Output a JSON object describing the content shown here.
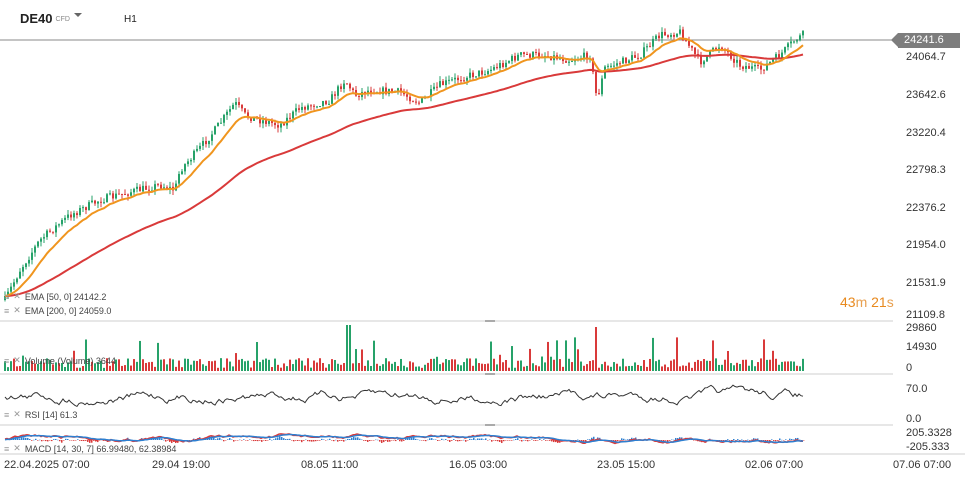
{
  "header": {
    "symbol": "DE40",
    "instrument_type": "CFD",
    "timeframe": "H1"
  },
  "timer": {
    "minutes": "43",
    "minutes_unit": "m",
    "seconds": "21",
    "seconds_unit": "s"
  },
  "price_axis": {
    "current_price": "24241.6",
    "labels": [
      "24064.7",
      "23642.6",
      "23220.4",
      "22798.3",
      "22376.2",
      "21954.0",
      "21531.9",
      "21109.8"
    ]
  },
  "volume_axis": {
    "labels": [
      "29860",
      "14930",
      "0"
    ]
  },
  "rsi_axis": {
    "labels": [
      "70.0",
      "0.0"
    ]
  },
  "macd_axis": {
    "labels": [
      "205.3328",
      "-205.333"
    ]
  },
  "time_axis": {
    "labels": [
      "22.04.2025  07:00",
      "29.04  19:00",
      "08.05  11:00",
      "16.05  03:00",
      "23.05  15:00",
      "02.06  07:00",
      "07.06  07:00"
    ]
  },
  "indicators": {
    "ema50": "EMA  [50, 0]  24142.2",
    "ema200": "EMA  [200, 0]  24059.0",
    "volume": "Volume  (Volume)  3644",
    "rsi": "RSI  [14]  61.3",
    "macd": "MACD  [14, 30, 7]  66.99480,  62.38984"
  },
  "colors": {
    "bull": "#26a269",
    "bear": "#d93a3a",
    "ema50": "#f0951e",
    "ema200": "#d93a3a",
    "macd_line": "#d93a3a",
    "macd_signal": "#2e7fd0"
  },
  "chart_data": [
    {
      "type": "candlestick",
      "series": [
        {
          "name": "EMA [50, 0]",
          "last": 24142.2
        },
        {
          "name": "EMA [200, 0]",
          "last": 24059.0
        }
      ],
      "x": [
        "22.04.2025 07:00",
        "29.04 19:00",
        "08.05 11:00",
        "16.05 03:00",
        "23.05 15:00",
        "02.06 07:00",
        "07.06 07:00"
      ],
      "close": [
        21300,
        22500,
        23700,
        23950,
        24000,
        23900,
        24241.6
      ],
      "last_price": 24241.6,
      "ylim": [
        21109.8,
        24300
      ]
    },
    {
      "type": "bar",
      "name": "Volume",
      "last": 3644,
      "ylim": [
        0,
        29860
      ]
    },
    {
      "type": "line",
      "name": "RSI [14]",
      "last": 61.3,
      "ylim": [
        0,
        100
      ]
    },
    {
      "type": "line",
      "name": "MACD [14, 30, 7]",
      "values": [
        66.9948,
        62.38984
      ],
      "ylim": [
        -205.333,
        205.3328
      ]
    }
  ]
}
